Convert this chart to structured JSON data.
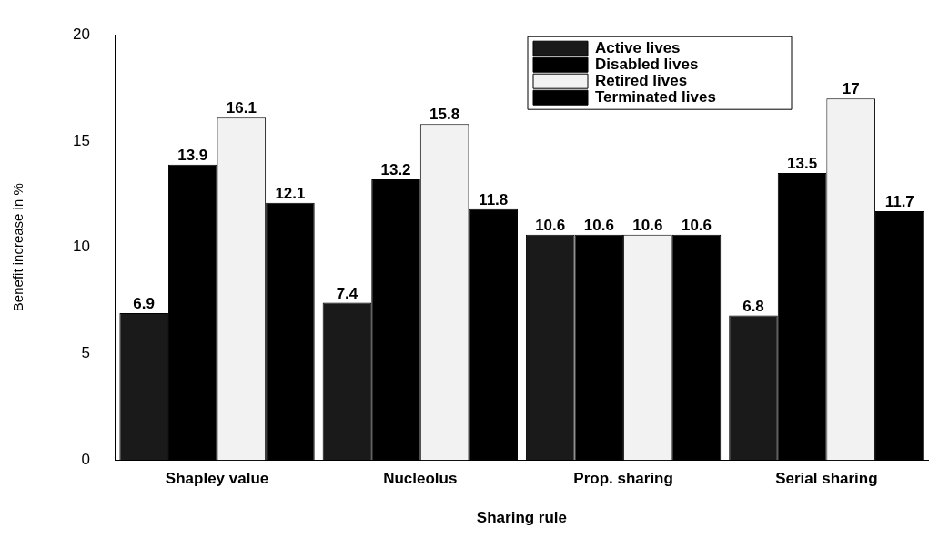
{
  "chart_data": {
    "type": "bar",
    "xlabel": "Sharing rule",
    "ylabel": "Benefit increase in %",
    "categories": [
      "Shapley value",
      "Nucleolus",
      "Prop. sharing",
      "Serial sharing"
    ],
    "series": [
      {
        "name": "Active lives",
        "color": "#1a1a1a",
        "values": [
          6.9,
          7.4,
          10.6,
          6.8
        ]
      },
      {
        "name": "Disabled lives",
        "color": "#000000",
        "values": [
          13.9,
          13.2,
          10.6,
          13.5
        ]
      },
      {
        "name": "Retired lives",
        "color": "#f2f2f2",
        "values": [
          16.1,
          15.8,
          10.6,
          17
        ]
      },
      {
        "name": "Terminated lives",
        "color": "#000000",
        "values": [
          12.1,
          11.8,
          10.6,
          11.7
        ]
      }
    ],
    "ylim": [
      0,
      20
    ],
    "yticks": [
      0,
      5,
      10,
      15,
      20
    ],
    "grid": false,
    "legend": "top right",
    "data_labels": true
  }
}
